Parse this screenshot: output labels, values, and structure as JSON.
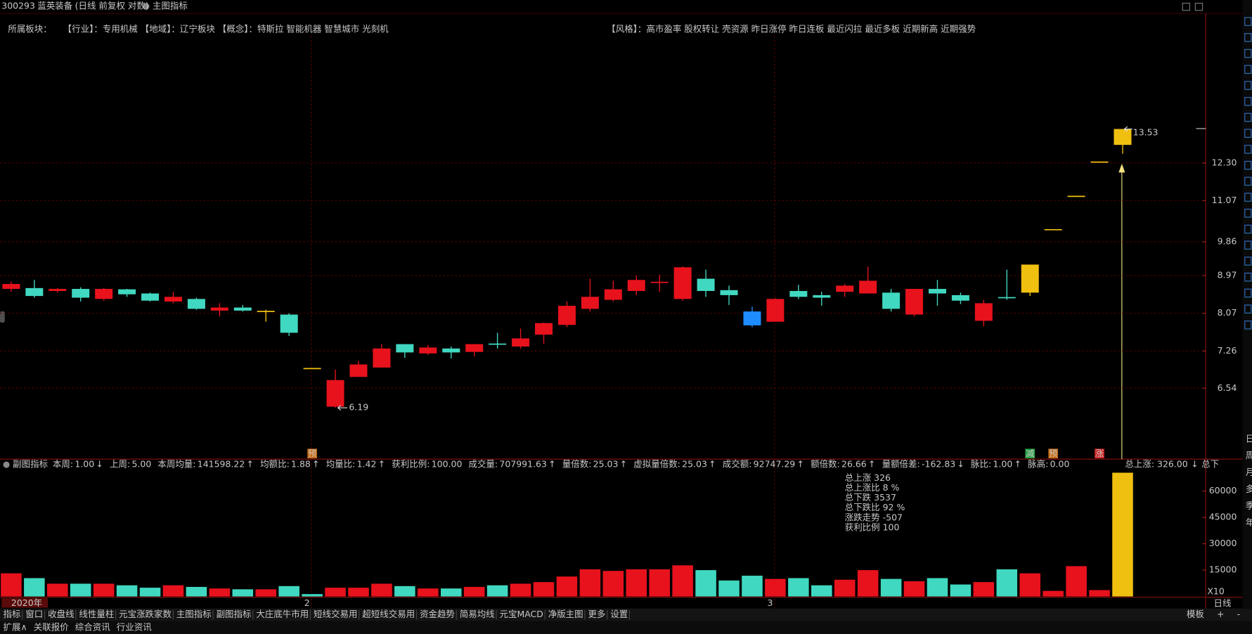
{
  "header": {
    "code": "300293",
    "name": "蓝英装备",
    "mode": "(日线 前复权 对数)",
    "indicator": "主图指标"
  },
  "sectors": {
    "label": "所属板块：",
    "text": "【行业】：专用机械 【地域】：辽宁板块 【概念】：特斯拉 智能机器 智慧城市 光刻机"
  },
  "style": "【风格】：高市盈率 股权转让 壳资源 昨日涨停 昨日连板 最近闪拉 最近多板 近期新高 近期强势",
  "sub_indicator": {
    "title": "副图指标",
    "items": [
      {
        "label": "本周:",
        "value": "1.00",
        "arrow": "↓"
      },
      {
        "label": "上周:",
        "value": "5.00",
        "arrow": null
      },
      {
        "label": "本周均量:",
        "value": "141598.22",
        "arrow": "↑"
      },
      {
        "label": "均额比:",
        "value": "1.88",
        "arrow": "↑"
      },
      {
        "label": "均量比:",
        "value": "1.42",
        "arrow": "↑"
      },
      {
        "label": "获利比例:",
        "value": "100.00",
        "arrow": null
      },
      {
        "label": "成交量:",
        "value": "707991.63",
        "arrow": "↑"
      },
      {
        "label": "量倍数:",
        "value": "25.03",
        "arrow": "↑"
      },
      {
        "label": "虚拟量倍数:",
        "value": "25.03",
        "arrow": "↑"
      },
      {
        "label": "成交额:",
        "value": "92747.29",
        "arrow": "↑"
      },
      {
        "label": "额倍数:",
        "value": "26.66",
        "arrow": "↑"
      },
      {
        "label": "量额倍差:",
        "value": "-162.83",
        "arrow": "↓"
      },
      {
        "label": "脉比:",
        "value": "1.00",
        "arrow": "↑"
      },
      {
        "label": "脉高:",
        "value": "0.00",
        "arrow": null
      }
    ]
  },
  "summary": {
    "text": "总上涨: 326.00",
    "arrow": "↓",
    "cut": "总下"
  },
  "stats": {
    "lines": [
      "总上涨 326",
      "总上涨比 8 %",
      "总下跌 3537",
      "总下跌比 92 %",
      "涨跌走势 -507",
      "获利比例 100"
    ],
    "colors": [
      "#e83030",
      "#e83030",
      "#30d030",
      "#30d030",
      "#f0d020",
      "#c8c8c8"
    ]
  },
  "scale_label": "X10",
  "period": "日线",
  "toolbar": {
    "tabs": [
      "指标",
      "窗口",
      "收盘线",
      "线性量柱",
      "元宝涨跌家数",
      "主图指标",
      "副图指标",
      "大庄底牛市用",
      "短线交易用",
      "超短线交易用",
      "资金趋势",
      "简易均线",
      "元宝MACD",
      "净版主图",
      "更多",
      "设置"
    ],
    "active": 6,
    "right": [
      "模板",
      "+",
      "-"
    ]
  },
  "subbar": {
    "tabs": [
      "扩展∧",
      "关联报价",
      "综合资讯",
      "行业资讯"
    ],
    "highlight": [
      2,
      3
    ]
  },
  "side_periods": [
    "日",
    "周",
    "月",
    "多",
    "季",
    "年"
  ],
  "chart_data": [
    {
      "type": "candlestick",
      "log": true,
      "grid": true,
      "ylim": [
        5.36,
        18.66
      ],
      "yticks": [
        6.54,
        7.26,
        8.07,
        8.97,
        9.86,
        11.07,
        {
          "value": 12.3,
          "label": "12.30"
        }
      ],
      "open": [
        8.64,
        8.66,
        8.59,
        8.64,
        8.4,
        8.63,
        8.53,
        8.34,
        8.4,
        8.13,
        8.2,
        8.11,
        8.04,
        6.91,
        6.21,
        6.75,
        6.93,
        7.4,
        7.21,
        7.31,
        7.24,
        7.4,
        7.35,
        7.6,
        7.81,
        8.17,
        8.38,
        8.59,
        8.8,
        8.4,
        8.89,
        8.61,
        8.11,
        7.88,
        8.59,
        8.49,
        8.57,
        8.53,
        8.55,
        8.04,
        8.64,
        8.49,
        7.9,
        8.43,
        8.55,
        10.2,
        11.2,
        12.33,
        12.94
      ],
      "high": [
        8.82,
        8.86,
        8.66,
        8.68,
        8.66,
        8.64,
        8.55,
        8.57,
        8.43,
        8.3,
        8.26,
        8.15,
        8.07,
        6.91,
        6.89,
        7.06,
        7.4,
        7.4,
        7.38,
        7.35,
        7.4,
        7.64,
        7.73,
        7.86,
        8.34,
        8.89,
        8.84,
        8.97,
        8.99,
        9.2,
        9.12,
        8.72,
        8.22,
        8.42,
        8.74,
        8.57,
        8.76,
        9.2,
        8.64,
        8.64,
        8.86,
        8.55,
        8.38,
        9.12,
        9.25,
        10.2,
        11.2,
        12.33,
        13.53
      ],
      "low": [
        8.57,
        8.43,
        8.55,
        8.34,
        8.36,
        8.45,
        8.34,
        8.3,
        8.15,
        8.0,
        8.11,
        7.88,
        7.57,
        6.91,
        6.19,
        6.75,
        6.93,
        7.12,
        7.18,
        7.11,
        7.15,
        7.31,
        7.31,
        7.41,
        7.76,
        8.11,
        8.34,
        8.49,
        8.57,
        8.36,
        8.45,
        8.26,
        7.76,
        7.88,
        8.4,
        8.24,
        8.45,
        8.53,
        8.11,
        8.0,
        8.24,
        8.28,
        7.78,
        8.38,
        8.47,
        10.2,
        11.2,
        12.33,
        12.62
      ],
      "close": [
        8.76,
        8.47,
        8.64,
        8.43,
        8.64,
        8.51,
        8.36,
        8.45,
        8.17,
        8.2,
        8.13,
        8.11,
        7.64,
        6.91,
        6.69,
        6.99,
        7.31,
        7.23,
        7.33,
        7.23,
        7.4,
        7.4,
        7.52,
        7.85,
        8.24,
        8.45,
        8.63,
        8.86,
        8.8,
        9.18,
        8.59,
        8.49,
        7.8,
        8.4,
        8.45,
        8.43,
        8.72,
        8.84,
        8.17,
        8.64,
        8.53,
        8.36,
        8.3,
        8.43,
        9.25,
        10.2,
        11.2,
        12.33,
        13.53
      ],
      "colors": [
        "#e8121c",
        "#40d8c0",
        "#e8121c",
        "#40d8c0",
        "#e8121c",
        "#40d8c0",
        "#40d8c0",
        "#e8121c",
        "#40d8c0",
        "#e8121c",
        "#40d8c0",
        "#f0c010",
        "#40d8c0",
        "#f0c010",
        "#e8121c",
        "#e8121c",
        "#e8121c",
        "#40d8c0",
        "#e8121c",
        "#40d8c0",
        "#e8121c",
        "#40d8c0",
        "#e8121c",
        "#e8121c",
        "#e8121c",
        "#e8121c",
        "#e8121c",
        "#e8121c",
        "#e8121c",
        "#e8121c",
        "#40d8c0",
        "#40d8c0",
        "#1e8cff",
        "#e8121c",
        "#40d8c0",
        "#40d8c0",
        "#e8121c",
        "#e8121c",
        "#40d8c0",
        "#e8121c",
        "#40d8c0",
        "#40d8c0",
        "#e8121c",
        "#40d8c0",
        "#f0c010",
        "#f0c010",
        "#f0c010",
        "#f0c010",
        "#f0c010"
      ],
      "signals": [
        null,
        null,
        null,
        null,
        null,
        null,
        null,
        null,
        null,
        null,
        null,
        null,
        null,
        "预",
        null,
        null,
        null,
        null,
        null,
        null,
        null,
        null,
        null,
        null,
        null,
        null,
        null,
        null,
        null,
        null,
        null,
        null,
        null,
        null,
        null,
        null,
        null,
        null,
        null,
        null,
        null,
        null,
        null,
        null,
        "减",
        "预",
        null,
        "涨",
        null
      ],
      "signal_colors": [
        null,
        null,
        null,
        null,
        null,
        null,
        null,
        null,
        null,
        null,
        null,
        null,
        null,
        "#c86a10",
        null,
        null,
        null,
        null,
        null,
        null,
        null,
        null,
        null,
        null,
        null,
        null,
        null,
        null,
        null,
        null,
        null,
        null,
        null,
        null,
        null,
        null,
        null,
        null,
        null,
        null,
        null,
        null,
        null,
        null,
        "#20a040",
        "#c86a10",
        null,
        "#d02020",
        null
      ]
    },
    {
      "type": "bar",
      "grid": false,
      "ylim": [
        0,
        71360
      ],
      "yticks": [
        15000,
        30000,
        45000,
        60000
      ],
      "categories": [
        "2020年",
        null,
        null,
        null,
        null,
        null,
        null,
        null,
        null,
        null,
        null,
        null,
        null,
        "2",
        null,
        null,
        null,
        null,
        null,
        null,
        null,
        null,
        null,
        null,
        null,
        null,
        null,
        null,
        null,
        null,
        null,
        null,
        null,
        "3",
        null,
        null,
        null,
        null,
        null,
        null,
        null,
        null,
        null,
        null,
        null,
        null,
        null,
        null,
        null
      ],
      "values": [
        13180,
        10450,
        7270,
        7270,
        7270,
        6360,
        5000,
        6360,
        5450,
        4550,
        4090,
        4090,
        5910,
        1360,
        5000,
        5000,
        7270,
        5910,
        4550,
        4550,
        5450,
        6360,
        7270,
        8180,
        11360,
        15450,
        14550,
        15450,
        15450,
        17730,
        15000,
        9090,
        11820,
        10000,
        10450,
        6360,
        9550,
        15000,
        10000,
        8640,
        10450,
        6820,
        8180,
        15450,
        13180,
        3180,
        17270,
        3640,
        70450
      ],
      "colors": [
        "#e8121c",
        "#40d8c0",
        "#e8121c",
        "#40d8c0",
        "#e8121c",
        "#40d8c0",
        "#40d8c0",
        "#e8121c",
        "#40d8c0",
        "#e8121c",
        "#40d8c0",
        "#e8121c",
        "#40d8c0",
        "#40d8c0",
        "#e8121c",
        "#e8121c",
        "#e8121c",
        "#40d8c0",
        "#e8121c",
        "#40d8c0",
        "#e8121c",
        "#40d8c0",
        "#e8121c",
        "#e8121c",
        "#e8121c",
        "#e8121c",
        "#e8121c",
        "#e8121c",
        "#e8121c",
        "#e8121c",
        "#40d8c0",
        "#40d8c0",
        "#40d8c0",
        "#e8121c",
        "#40d8c0",
        "#40d8c0",
        "#e8121c",
        "#e8121c",
        "#40d8c0",
        "#e8121c",
        "#40d8c0",
        "#40d8c0",
        "#e8121c",
        "#40d8c0",
        "#e8121c",
        "#e8121c",
        "#e8121c",
        "#e8121c",
        "#f0c010"
      ]
    }
  ]
}
